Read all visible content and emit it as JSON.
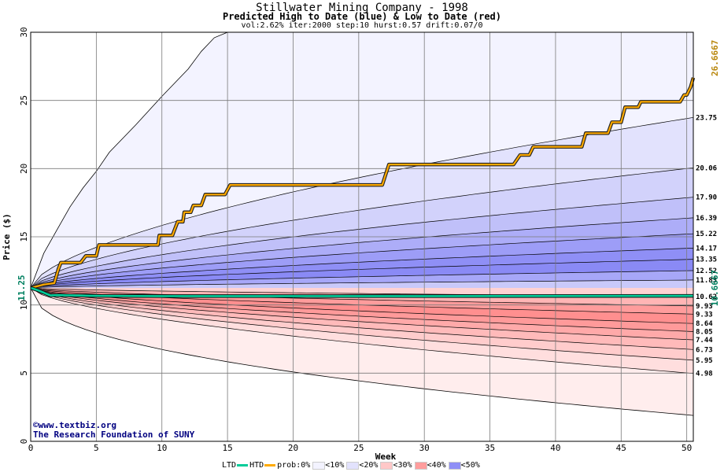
{
  "chart_data": {
    "type": "area",
    "title": "Stillwater Mining Company - 1998",
    "subtitle": "Predicted High to Date (blue) &  Low to Date (red)",
    "params": "vol:2.62% iter:2000 step:10 hurst:0.57 drift:0.07/0",
    "xlabel": "Week",
    "ylabel": "Price ($)",
    "xlim": [
      0,
      50.5
    ],
    "ylim": [
      0,
      30
    ],
    "xticks": [
      0,
      5,
      10,
      15,
      20,
      25,
      30,
      35,
      40,
      45,
      50
    ],
    "yticks": [
      0,
      5,
      10,
      15,
      20,
      25,
      30
    ],
    "grid": true,
    "start_price": 11.25,
    "start_label": "11.25",
    "upper_quantiles": [
      23.75,
      20.06,
      17.9,
      16.39,
      15.22,
      14.17,
      13.35,
      12.52,
      11.83
    ],
    "upper_labels": [
      "23.75",
      "20.06",
      "17.90",
      "16.39",
      "15.22",
      "14.17",
      "13.35",
      "12.52",
      "11.83"
    ],
    "upper_envelope": [
      [
        0,
        11.25
      ],
      [
        1,
        13.8
      ],
      [
        2,
        15.5
      ],
      [
        3,
        17.2
      ],
      [
        4,
        18.6
      ],
      [
        5,
        19.8
      ],
      [
        6,
        21.2
      ],
      [
        8,
        23.2
      ],
      [
        10,
        25.3
      ],
      [
        12,
        27.3
      ],
      [
        13,
        28.6
      ],
      [
        14,
        29.6
      ],
      [
        15,
        30.0
      ]
    ],
    "lower_quantiles": [
      10.62,
      9.93,
      9.33,
      8.64,
      8.05,
      7.44,
      6.73,
      5.95,
      4.98
    ],
    "lower_labels": [
      "10.62",
      "9.93",
      "9.33",
      "8.64",
      "8.05",
      "7.44",
      "6.73",
      "5.95",
      "4.98"
    ],
    "lower_min_end": 1.9,
    "htd_series": {
      "name": "HTD",
      "final_value": 26.6667,
      "final_label": "26.6667",
      "points": [
        [
          0,
          11.25
        ],
        [
          1,
          11.5
        ],
        [
          1.8,
          11.6
        ],
        [
          2.1,
          12.6
        ],
        [
          2.3,
          13.1
        ],
        [
          3.8,
          13.1
        ],
        [
          4.2,
          13.6
        ],
        [
          5,
          13.6
        ],
        [
          5.2,
          14.4
        ],
        [
          9.7,
          14.4
        ],
        [
          9.8,
          15.1
        ],
        [
          10.8,
          15.1
        ],
        [
          11.2,
          16.1
        ],
        [
          11.6,
          16.1
        ],
        [
          11.7,
          16.8
        ],
        [
          12.2,
          16.8
        ],
        [
          12.4,
          17.3
        ],
        [
          13,
          17.3
        ],
        [
          13.3,
          18.1
        ],
        [
          14.8,
          18.1
        ],
        [
          15.2,
          18.8
        ],
        [
          26.8,
          18.8
        ],
        [
          27.3,
          20.3
        ],
        [
          36.8,
          20.3
        ],
        [
          37.3,
          21.0
        ],
        [
          38,
          21.0
        ],
        [
          38.3,
          21.6
        ],
        [
          42,
          21.6
        ],
        [
          42.3,
          22.6
        ],
        [
          44,
          22.6
        ],
        [
          44.3,
          23.4
        ],
        [
          45,
          23.4
        ],
        [
          45.3,
          24.5
        ],
        [
          46.3,
          24.5
        ],
        [
          46.5,
          24.9
        ],
        [
          49.5,
          24.9
        ],
        [
          49.8,
          25.4
        ],
        [
          50,
          25.4
        ],
        [
          50.3,
          26.0
        ],
        [
          50.5,
          26.6667
        ]
      ]
    },
    "ltd_series": {
      "name": "LTD",
      "final_value": 10.6667,
      "final_label": "10.6667",
      "points": [
        [
          0,
          11.25
        ],
        [
          0.5,
          11.1
        ],
        [
          1,
          10.9
        ],
        [
          1.5,
          10.7
        ],
        [
          2,
          10.72
        ],
        [
          5,
          10.67
        ],
        [
          10,
          10.65
        ],
        [
          30,
          10.65
        ],
        [
          50.5,
          10.6667
        ]
      ]
    },
    "colors": {
      "htd": "#ffaa00",
      "ltd": "#00cc99",
      "htd_label": "#b8860b",
      "ltd_label": "#008060"
    },
    "legend": {
      "ltd_label": "LTD",
      "htd_label": "HTD",
      "prob_label": "prob:0%",
      "entries": [
        {
          "label": "<10%",
          "color": "#f3f3ff"
        },
        {
          "label": "<20%",
          "color": "#e2e2fd"
        },
        {
          "label": "<30%",
          "color": "#ffc8c8"
        },
        {
          "label": "<40%",
          "color": "#ff9d9d"
        },
        {
          "label": "<50%",
          "color": "#8f8ff6"
        }
      ]
    }
  },
  "credits": {
    "line1": "©www.textbiz.org",
    "line2": "The Research Foundation of SUNY"
  }
}
